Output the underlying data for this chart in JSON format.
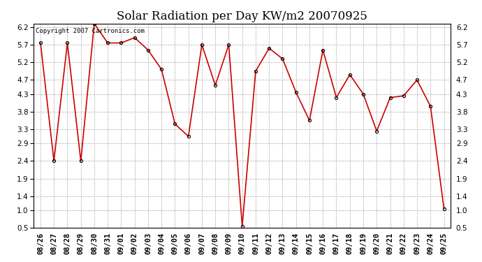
{
  "title": "Solar Radiation per Day KW/m2 20070925",
  "copyright": "Copyright 2007 Cartronics.com",
  "dates": [
    "08/26",
    "08/27",
    "08/28",
    "08/29",
    "08/30",
    "08/31",
    "09/01",
    "09/02",
    "09/03",
    "09/04",
    "09/05",
    "09/06",
    "09/07",
    "09/08",
    "09/09",
    "09/10",
    "09/11",
    "09/12",
    "09/13",
    "09/14",
    "09/15",
    "09/16",
    "09/17",
    "09/18",
    "09/19",
    "09/20",
    "09/21",
    "09/22",
    "09/23",
    "09/24",
    "09/25"
  ],
  "values": [
    5.75,
    2.4,
    5.75,
    2.4,
    6.3,
    5.75,
    5.75,
    5.9,
    5.55,
    5.0,
    3.45,
    3.1,
    5.7,
    4.55,
    5.7,
    0.55,
    4.95,
    5.6,
    5.3,
    4.35,
    3.55,
    5.55,
    4.2,
    4.85,
    4.3,
    3.25,
    4.2,
    4.25,
    4.7,
    3.95,
    1.05
  ],
  "line_color": "#cc0000",
  "marker_color": "#000000",
  "bg_color": "#ffffff",
  "plot_bg_color": "#ffffff",
  "grid_color": "#aaaaaa",
  "ylim": [
    0.5,
    6.3
  ],
  "yticks": [
    0.5,
    1.0,
    1.4,
    1.9,
    2.4,
    2.9,
    3.3,
    3.8,
    4.3,
    4.7,
    5.2,
    5.7,
    6.2
  ],
  "title_fontsize": 12,
  "tick_fontsize": 7.5,
  "copyright_fontsize": 6.5
}
